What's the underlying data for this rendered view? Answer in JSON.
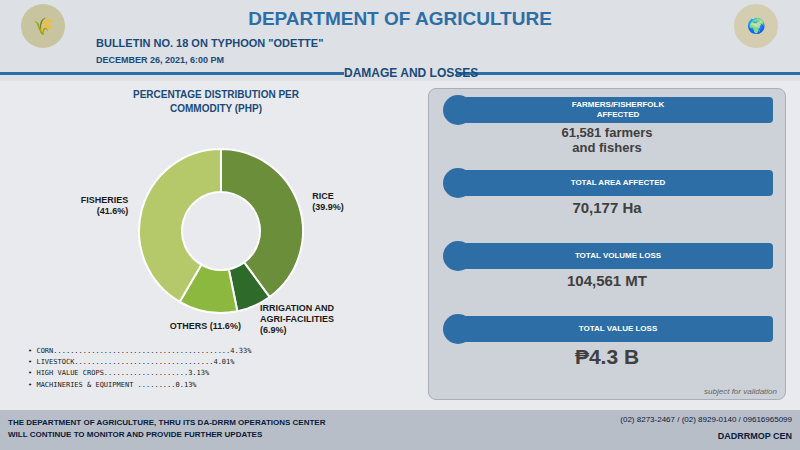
{
  "chart_data": {
    "type": "pie",
    "title": "PERCENTAGE DISTRIBUTION PER\nCOMMODITY (PHP)",
    "categories": [
      "RICE\n(39.9%)",
      "IRRIGATION AND\nAGRI-FACILITIES\n(6.9%)",
      "OTHERS (11.6%)",
      "FISHERIES\n(41.6%)"
    ],
    "values": [
      39.9,
      6.9,
      11.6,
      41.6
    ],
    "colors": [
      "#6b8e3a",
      "#2e6b2a",
      "#8db840",
      "#b5c96a"
    ],
    "legend": false,
    "annotations": [
      "DEPARTMENT OF AGRICULTURE",
      "BULLETIN NO. 18 ON TYPHOON \"ODETTE\"",
      "DECEMBER 26, 2021, 6:00 PM",
      "DAMAGE AND LOSSES",
      "🌾",
      "🌍",
      "• CORN..........................................4.33%",
      "• LIVESTOCK.................................4.01%",
      "• HIGH VALUE CROPS....................3.13%",
      "• MACHINERIES & EQUIPMENT .........0.13%",
      "FARMERS/FISHERFOLK\nAFFECTED",
      "61,581 farmers\nand fishers",
      "TOTAL AREA AFFECTED",
      "70,177 Ha",
      "TOTAL VOLUME LOSS",
      "104,561 MT",
      "TOTAL VALUE LOSS",
      "₱4.3 B",
      "subject for validation",
      "THE DEPARTMENT OF AGRICULTURE, THRU ITS DA-DRRM OPERATIONS CENTER\nWILL CONTINUE TO MONITOR AND PROVIDE FURTHER UPDATES",
      "(02) 8273-2467 / (02) 8929-0140 / 09616965099",
      "DADRRMOP CEN"
    ]
  }
}
